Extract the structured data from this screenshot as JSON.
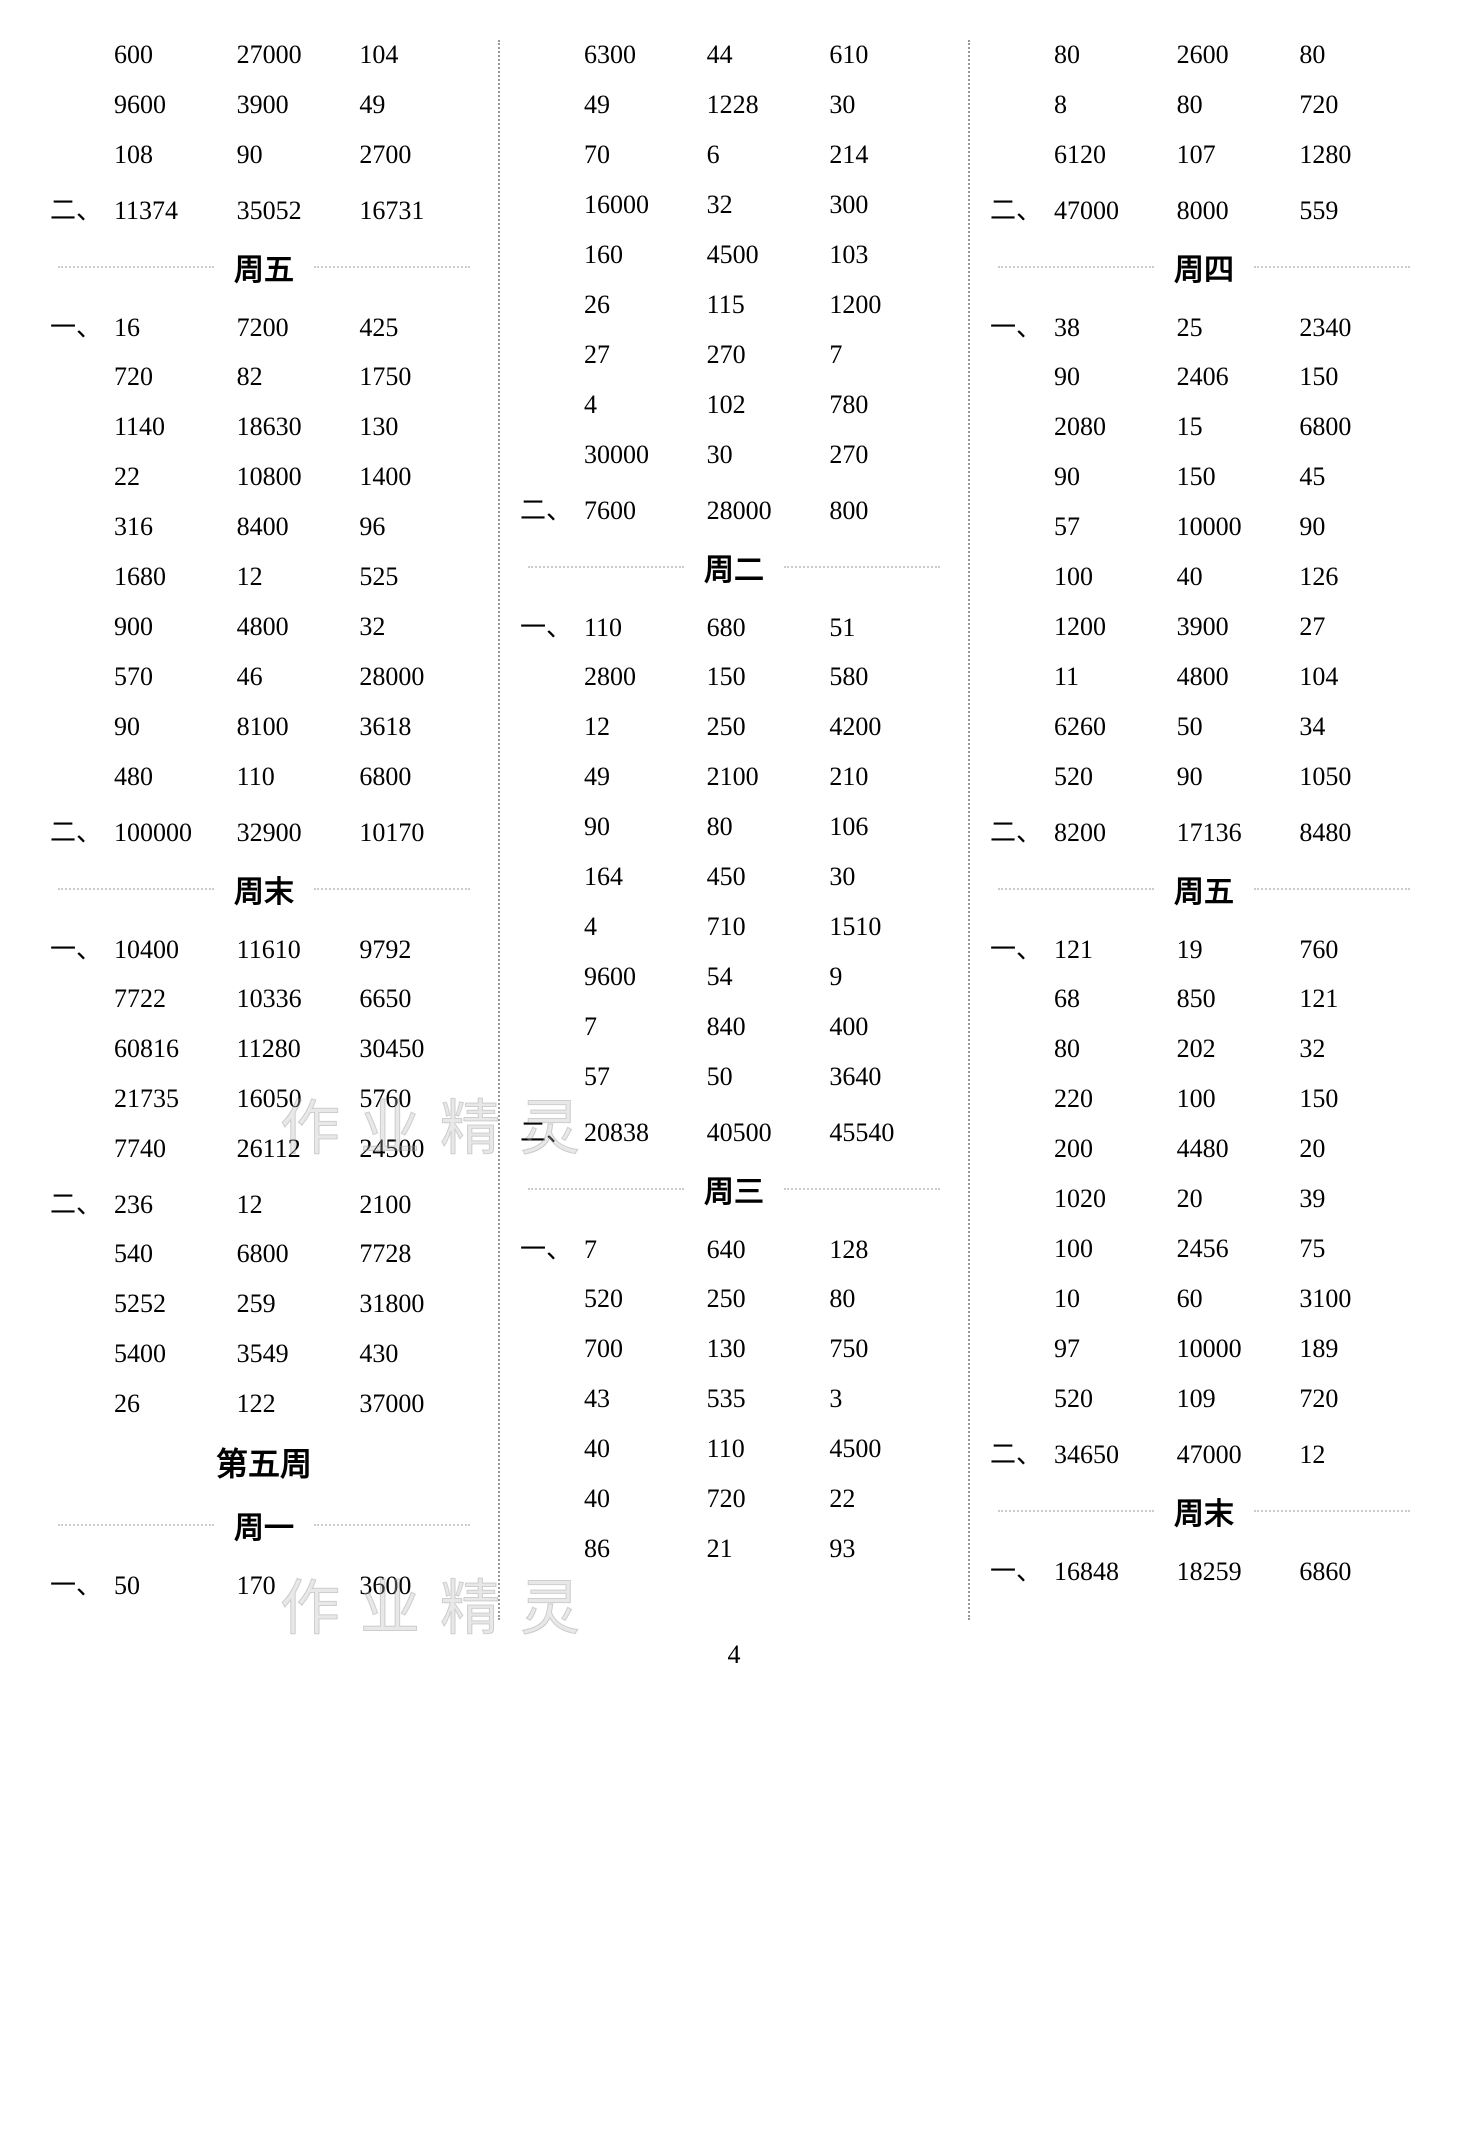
{
  "page_number": "4",
  "watermark1": "作业精灵",
  "watermark2": "作业精灵",
  "columns": [
    {
      "rows": [
        {
          "type": "data",
          "label": "",
          "cells": [
            "600",
            "27000",
            "104"
          ]
        },
        {
          "type": "data",
          "label": "",
          "cells": [
            "9600",
            "3900",
            "49"
          ]
        },
        {
          "type": "data",
          "label": "",
          "cells": [
            "108",
            "90",
            "2700"
          ]
        },
        {
          "type": "data",
          "label": "二、",
          "cells": [
            "11374",
            "35052",
            "16731"
          ]
        },
        {
          "type": "heading",
          "text": "周五"
        },
        {
          "type": "data",
          "label": "一、",
          "cells": [
            "16",
            "7200",
            "425"
          ]
        },
        {
          "type": "data",
          "label": "",
          "cells": [
            "720",
            "82",
            "1750"
          ]
        },
        {
          "type": "data",
          "label": "",
          "cells": [
            "1140",
            "18630",
            "130"
          ]
        },
        {
          "type": "data",
          "label": "",
          "cells": [
            "22",
            "10800",
            "1400"
          ]
        },
        {
          "type": "data",
          "label": "",
          "cells": [
            "316",
            "8400",
            "96"
          ]
        },
        {
          "type": "data",
          "label": "",
          "cells": [
            "1680",
            "12",
            "525"
          ]
        },
        {
          "type": "data",
          "label": "",
          "cells": [
            "900",
            "4800",
            "32"
          ]
        },
        {
          "type": "data",
          "label": "",
          "cells": [
            "570",
            "46",
            "28000"
          ]
        },
        {
          "type": "data",
          "label": "",
          "cells": [
            "90",
            "8100",
            "3618"
          ]
        },
        {
          "type": "data",
          "label": "",
          "cells": [
            "480",
            "110",
            "6800"
          ]
        },
        {
          "type": "data",
          "label": "二、",
          "cells": [
            "100000",
            "32900",
            "10170"
          ]
        },
        {
          "type": "heading",
          "text": "周末"
        },
        {
          "type": "data",
          "label": "一、",
          "cells": [
            "10400",
            "11610",
            "9792"
          ]
        },
        {
          "type": "data",
          "label": "",
          "cells": [
            "7722",
            "10336",
            "6650"
          ]
        },
        {
          "type": "data",
          "label": "",
          "cells": [
            "60816",
            "11280",
            "30450"
          ]
        },
        {
          "type": "data",
          "label": "",
          "cells": [
            "21735",
            "16050",
            "5760"
          ]
        },
        {
          "type": "data",
          "label": "",
          "cells": [
            "7740",
            "26112",
            "24500"
          ]
        },
        {
          "type": "data",
          "label": "二、",
          "cells": [
            "236",
            "12",
            "2100"
          ]
        },
        {
          "type": "data",
          "label": "",
          "cells": [
            "540",
            "6800",
            "7728"
          ]
        },
        {
          "type": "data",
          "label": "",
          "cells": [
            "5252",
            "259",
            "31800"
          ]
        },
        {
          "type": "data",
          "label": "",
          "cells": [
            "5400",
            "3549",
            "430"
          ]
        },
        {
          "type": "data",
          "label": "",
          "cells": [
            "26",
            "122",
            "37000"
          ]
        },
        {
          "type": "week",
          "text": "第五周"
        },
        {
          "type": "heading",
          "text": "周一"
        },
        {
          "type": "data",
          "label": "一、",
          "cells": [
            "50",
            "170",
            "3600"
          ]
        }
      ]
    },
    {
      "rows": [
        {
          "type": "data",
          "label": "",
          "cells": [
            "6300",
            "44",
            "610"
          ]
        },
        {
          "type": "data",
          "label": "",
          "cells": [
            "49",
            "1228",
            "30"
          ]
        },
        {
          "type": "data",
          "label": "",
          "cells": [
            "70",
            "6",
            "214"
          ]
        },
        {
          "type": "data",
          "label": "",
          "cells": [
            "16000",
            "32",
            "300"
          ]
        },
        {
          "type": "data",
          "label": "",
          "cells": [
            "160",
            "4500",
            "103"
          ]
        },
        {
          "type": "data",
          "label": "",
          "cells": [
            "26",
            "115",
            "1200"
          ]
        },
        {
          "type": "data",
          "label": "",
          "cells": [
            "27",
            "270",
            "7"
          ]
        },
        {
          "type": "data",
          "label": "",
          "cells": [
            "4",
            "102",
            "780"
          ]
        },
        {
          "type": "data",
          "label": "",
          "cells": [
            "30000",
            "30",
            "270"
          ]
        },
        {
          "type": "data",
          "label": "二、",
          "cells": [
            "7600",
            "28000",
            "800"
          ]
        },
        {
          "type": "heading",
          "text": "周二"
        },
        {
          "type": "data",
          "label": "一、",
          "cells": [
            "110",
            "680",
            "51"
          ]
        },
        {
          "type": "data",
          "label": "",
          "cells": [
            "2800",
            "150",
            "580"
          ]
        },
        {
          "type": "data",
          "label": "",
          "cells": [
            "12",
            "250",
            "4200"
          ]
        },
        {
          "type": "data",
          "label": "",
          "cells": [
            "49",
            "2100",
            "210"
          ]
        },
        {
          "type": "data",
          "label": "",
          "cells": [
            "90",
            "80",
            "106"
          ]
        },
        {
          "type": "data",
          "label": "",
          "cells": [
            "164",
            "450",
            "30"
          ]
        },
        {
          "type": "data",
          "label": "",
          "cells": [
            "4",
            "710",
            "1510"
          ]
        },
        {
          "type": "data",
          "label": "",
          "cells": [
            "9600",
            "54",
            "9"
          ]
        },
        {
          "type": "data",
          "label": "",
          "cells": [
            "7",
            "840",
            "400"
          ]
        },
        {
          "type": "data",
          "label": "",
          "cells": [
            "57",
            "50",
            "3640"
          ]
        },
        {
          "type": "data",
          "label": "二、",
          "cells": [
            "20838",
            "40500",
            "45540"
          ]
        },
        {
          "type": "heading",
          "text": "周三"
        },
        {
          "type": "data",
          "label": "一、",
          "cells": [
            "7",
            "640",
            "128"
          ]
        },
        {
          "type": "data",
          "label": "",
          "cells": [
            "520",
            "250",
            "80"
          ]
        },
        {
          "type": "data",
          "label": "",
          "cells": [
            "700",
            "130",
            "750"
          ]
        },
        {
          "type": "data",
          "label": "",
          "cells": [
            "43",
            "535",
            "3"
          ]
        },
        {
          "type": "data",
          "label": "",
          "cells": [
            "40",
            "110",
            "4500"
          ]
        },
        {
          "type": "data",
          "label": "",
          "cells": [
            "40",
            "720",
            "22"
          ]
        },
        {
          "type": "data",
          "label": "",
          "cells": [
            "86",
            "21",
            "93"
          ]
        }
      ]
    },
    {
      "rows": [
        {
          "type": "data",
          "label": "",
          "cells": [
            "80",
            "2600",
            "80"
          ]
        },
        {
          "type": "data",
          "label": "",
          "cells": [
            "8",
            "80",
            "720"
          ]
        },
        {
          "type": "data",
          "label": "",
          "cells": [
            "6120",
            "107",
            "1280"
          ]
        },
        {
          "type": "data",
          "label": "二、",
          "cells": [
            "47000",
            "8000",
            "559"
          ]
        },
        {
          "type": "heading",
          "text": "周四"
        },
        {
          "type": "data",
          "label": "一、",
          "cells": [
            "38",
            "25",
            "2340"
          ]
        },
        {
          "type": "data",
          "label": "",
          "cells": [
            "90",
            "2406",
            "150"
          ]
        },
        {
          "type": "data",
          "label": "",
          "cells": [
            "2080",
            "15",
            "6800"
          ]
        },
        {
          "type": "data",
          "label": "",
          "cells": [
            "90",
            "150",
            "45"
          ]
        },
        {
          "type": "data",
          "label": "",
          "cells": [
            "57",
            "10000",
            "90"
          ]
        },
        {
          "type": "data",
          "label": "",
          "cells": [
            "100",
            "40",
            "126"
          ]
        },
        {
          "type": "data",
          "label": "",
          "cells": [
            "1200",
            "3900",
            "27"
          ]
        },
        {
          "type": "data",
          "label": "",
          "cells": [
            "11",
            "4800",
            "104"
          ]
        },
        {
          "type": "data",
          "label": "",
          "cells": [
            "6260",
            "50",
            "34"
          ]
        },
        {
          "type": "data",
          "label": "",
          "cells": [
            "520",
            "90",
            "1050"
          ]
        },
        {
          "type": "data",
          "label": "二、",
          "cells": [
            "8200",
            "17136",
            "8480"
          ]
        },
        {
          "type": "heading",
          "text": "周五"
        },
        {
          "type": "data",
          "label": "一、",
          "cells": [
            "121",
            "19",
            "760"
          ]
        },
        {
          "type": "data",
          "label": "",
          "cells": [
            "68",
            "850",
            "121"
          ]
        },
        {
          "type": "data",
          "label": "",
          "cells": [
            "80",
            "202",
            "32"
          ]
        },
        {
          "type": "data",
          "label": "",
          "cells": [
            "220",
            "100",
            "150"
          ]
        },
        {
          "type": "data",
          "label": "",
          "cells": [
            "200",
            "4480",
            "20"
          ]
        },
        {
          "type": "data",
          "label": "",
          "cells": [
            "1020",
            "20",
            "39"
          ]
        },
        {
          "type": "data",
          "label": "",
          "cells": [
            "100",
            "2456",
            "75"
          ]
        },
        {
          "type": "data",
          "label": "",
          "cells": [
            "10",
            "60",
            "3100"
          ]
        },
        {
          "type": "data",
          "label": "",
          "cells": [
            "97",
            "10000",
            "189"
          ]
        },
        {
          "type": "data",
          "label": "",
          "cells": [
            "520",
            "109",
            "720"
          ]
        },
        {
          "type": "data",
          "label": "二、",
          "cells": [
            "34650",
            "47000",
            "12"
          ]
        },
        {
          "type": "heading",
          "text": "周末"
        },
        {
          "type": "data",
          "label": "一、",
          "cells": [
            "16848",
            "18259",
            "6860"
          ]
        }
      ]
    }
  ]
}
